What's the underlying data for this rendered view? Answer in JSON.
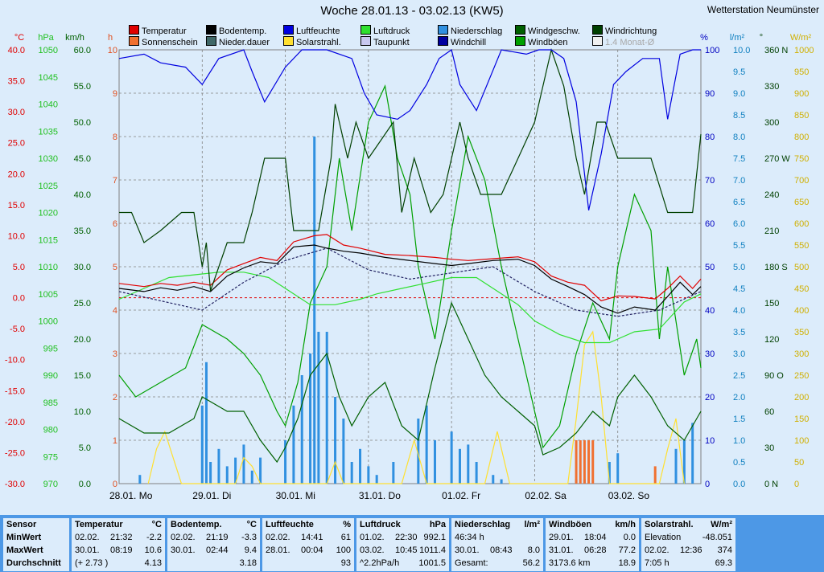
{
  "title": "Woche 28.01.13 - 03.02.13 (KW5)",
  "station": "Wetterstation Neumünster",
  "legend": [
    {
      "label": "Temperatur",
      "color": "#e00000"
    },
    {
      "label": "Sonnenschein",
      "color": "#f07030"
    },
    {
      "label": "Bodentemp.",
      "color": "#000000"
    },
    {
      "label": "Nieder.dauer",
      "color": "#406868"
    },
    {
      "label": "Luftfeuchte",
      "color": "#0000e0"
    },
    {
      "label": "Solarstrahl.",
      "color": "#ffe030"
    },
    {
      "label": "Luftdruck",
      "color": "#30e030"
    },
    {
      "label": "Taupunkt",
      "color": "#c8c8f0"
    },
    {
      "label": "Niederschlag",
      "color": "#3090e0"
    },
    {
      "label": "Windchill",
      "color": "#0000a0"
    },
    {
      "label": "Windgeschw.",
      "color": "#006000"
    },
    {
      "label": "Windböen",
      "color": "#00a000"
    },
    {
      "label": "Windrichtung",
      "color": "#004000"
    },
    {
      "label": "1.4 Monat-Ø",
      "color": "#f0f0f0"
    }
  ],
  "axes": {
    "headers": [
      "°C",
      "hPa",
      "km/h",
      "h",
      "%",
      "l/m²",
      "°",
      "W/m²"
    ],
    "celsius": [
      "40.0",
      "35.0",
      "30.0",
      "25.0",
      "20.0",
      "15.0",
      "10.0",
      "5.0",
      "0.0",
      "-5.0",
      "-10.0",
      "-15.0",
      "-20.0",
      "-25.0",
      "-30.0"
    ],
    "hpa": [
      "1050",
      "1045",
      "1040",
      "1035",
      "1030",
      "1025",
      "1020",
      "1015",
      "1010",
      "1005",
      "1000",
      "995",
      "990",
      "985",
      "980",
      "975",
      "970"
    ],
    "kmh": [
      "60.0",
      "55.0",
      "50.0",
      "45.0",
      "40.0",
      "35.0",
      "30.0",
      "25.0",
      "20.0",
      "15.0",
      "10.0",
      "5.0",
      "0.0"
    ],
    "hours": [
      "10",
      "9",
      "8",
      "7",
      "6",
      "5",
      "4",
      "3",
      "2",
      "1",
      "0"
    ],
    "percent": [
      "100",
      "90",
      "80",
      "70",
      "60",
      "50",
      "40",
      "30",
      "20",
      "10",
      "0"
    ],
    "rain": [
      "10.0",
      "9.5",
      "9.0",
      "8.5",
      "8.0",
      "7.5",
      "7.0",
      "6.5",
      "6.0",
      "5.5",
      "5.0",
      "4.5",
      "4.0",
      "3.5",
      "3.0",
      "2.5",
      "2.0",
      "1.5",
      "1.0",
      "0.5",
      "0.0"
    ],
    "degrees": [
      "360 N",
      "330",
      "300",
      "270 W",
      "240",
      "210",
      "180 S",
      "150",
      "120",
      "90 O",
      "60",
      "30",
      "0 N"
    ],
    "wm2": [
      "1000",
      "950",
      "900",
      "850",
      "800",
      "750",
      "700",
      "650",
      "600",
      "550",
      "500",
      "450",
      "400",
      "350",
      "300",
      "250",
      "200",
      "150",
      "100",
      "50",
      "0"
    ],
    "days": [
      "28.01. Mo",
      "29.01. Di",
      "30.01. Mi",
      "31.01. Do",
      "01.02. Fr",
      "02.02. Sa",
      "03.02. So"
    ]
  },
  "colors": {
    "plot_bg": "#dcecfb",
    "grid": "#808080",
    "zero_line": "#e00000"
  },
  "chart_data": {
    "type": "line",
    "title": "Woche 28.01.13 - 03.02.13 (KW5)",
    "x_label": "",
    "x_range": [
      0,
      7
    ],
    "x_ticks": [
      "28.01. Mo",
      "29.01. Di",
      "30.01. Mi",
      "31.01. Do",
      "01.02. Fr",
      "02.02. Sa",
      "03.02. So"
    ],
    "y_ranges": {
      "°C": [
        -30,
        40
      ],
      "hPa": [
        970,
        1050
      ],
      "km/h": [
        0,
        60
      ],
      "h": [
        0,
        10
      ],
      "%": [
        0,
        100
      ],
      "l/m²": [
        0,
        10
      ],
      "°": [
        0,
        360
      ],
      "W/m²": [
        0,
        1000
      ]
    },
    "grid": true,
    "series": [
      {
        "name": "Temperatur",
        "unit": "°C",
        "x": [
          0,
          0.3,
          0.5,
          0.7,
          0.9,
          1.1,
          1.3,
          1.5,
          1.7,
          1.9,
          2.1,
          2.35,
          2.5,
          2.7,
          2.9,
          3.2,
          3.5,
          3.8,
          4.0,
          4.2,
          4.5,
          4.8,
          5.0,
          5.2,
          5.4,
          5.6,
          5.8,
          6.0,
          6.2,
          6.45,
          6.6,
          6.75,
          6.9,
          7.0
        ],
        "y": [
          2.3,
          1.8,
          2.3,
          2.0,
          2.5,
          2.0,
          4.5,
          5.5,
          6.5,
          6.0,
          9.0,
          10.0,
          10.2,
          8.5,
          8.0,
          7.0,
          6.8,
          6.5,
          6.2,
          6.0,
          6.3,
          6.6,
          5.8,
          3.5,
          2.5,
          2.0,
          -0.5,
          0.3,
          0.2,
          -0.2,
          1.5,
          3.5,
          1.5,
          3.0
        ]
      },
      {
        "name": "Bodentemp.",
        "unit": "°C",
        "x": [
          0,
          0.3,
          0.5,
          0.7,
          0.9,
          1.1,
          1.3,
          1.5,
          1.7,
          1.9,
          2.1,
          2.35,
          2.5,
          2.7,
          2.9,
          3.2,
          3.5,
          3.8,
          4.0,
          4.2,
          4.5,
          4.8,
          5.0,
          5.2,
          5.4,
          5.6,
          5.8,
          6.0,
          6.2,
          6.45,
          6.6,
          6.75,
          6.9,
          7.0
        ],
        "y": [
          1.5,
          1.0,
          1.6,
          1.2,
          1.8,
          1.0,
          3.5,
          4.8,
          5.8,
          5.5,
          8.2,
          8.5,
          8.0,
          7.5,
          7.2,
          6.5,
          6.0,
          5.5,
          5.2,
          5.5,
          6.0,
          6.2,
          5.2,
          3.0,
          1.8,
          0.5,
          -1.5,
          -2.5,
          -1.5,
          -2.0,
          0.2,
          2.5,
          0.5,
          1.8
        ]
      },
      {
        "name": "Taupunkt",
        "unit": "°C",
        "x": [
          0,
          0.5,
          1.0,
          1.5,
          2.0,
          2.5,
          3.0,
          3.5,
          4.0,
          4.5,
          5.0,
          5.5,
          6.0,
          6.5,
          7.0
        ],
        "y": [
          1.0,
          -0.5,
          -2.0,
          2.5,
          6.0,
          8.0,
          4.5,
          3.0,
          4.0,
          5.0,
          1.0,
          -2.0,
          -3.0,
          -2.0,
          1.0
        ]
      },
      {
        "name": "Luftfeuchte",
        "unit": "%",
        "x": [
          0,
          0.3,
          0.5,
          0.8,
          1.0,
          1.2,
          1.5,
          1.6,
          1.75,
          2.0,
          2.2,
          2.5,
          2.8,
          2.95,
          3.1,
          3.35,
          3.5,
          3.7,
          3.85,
          4.0,
          4.1,
          4.3,
          4.6,
          4.9,
          5.05,
          5.2,
          5.35,
          5.5,
          5.65,
          5.8,
          5.95,
          6.1,
          6.3,
          6.5,
          6.6,
          6.75,
          6.9,
          7.0
        ],
        "y": [
          98,
          99,
          97,
          96,
          92,
          98,
          100,
          95,
          88,
          96,
          100,
          100,
          98,
          90,
          85,
          84,
          86,
          92,
          98,
          100,
          92,
          86,
          100,
          99,
          100,
          100,
          98,
          88,
          63,
          76,
          92,
          95,
          98,
          98,
          84,
          99,
          100,
          100
        ]
      },
      {
        "name": "Luftdruck",
        "unit": "hPa",
        "x": [
          0,
          0.3,
          0.6,
          0.9,
          1.2,
          1.5,
          1.8,
          2.0,
          2.3,
          2.6,
          2.9,
          3.1,
          3.4,
          3.7,
          4.0,
          4.3,
          4.5,
          4.8,
          5.0,
          5.3,
          5.6,
          5.9,
          6.2,
          6.5,
          6.8,
          7.0
        ],
        "y": [
          1004,
          1006,
          1008,
          1008.5,
          1009,
          1009,
          1008,
          1006,
          1003,
          1003,
          1004,
          1005,
          1006,
          1007,
          1008,
          1008,
          1006,
          1003,
          1000,
          997.5,
          996,
          996,
          998,
          998.5,
          1003.5,
          1005
        ]
      },
      {
        "name": "Windgeschw.",
        "unit": "km/h",
        "x": [
          0,
          0.3,
          0.6,
          0.9,
          1.0,
          1.3,
          1.5,
          1.7,
          1.9,
          2.0,
          2.15,
          2.3,
          2.5,
          2.65,
          2.8,
          3.0,
          3.2,
          3.4,
          3.6,
          3.8,
          4.0,
          4.2,
          4.4,
          4.6,
          4.8,
          5.0,
          5.1,
          5.3,
          5.5,
          5.7,
          5.9,
          6.0,
          6.2,
          6.4,
          6.6,
          6.8,
          6.9,
          7.0
        ],
        "y": [
          9,
          7,
          7,
          9,
          12,
          10,
          10,
          6,
          3,
          5,
          9,
          15,
          18,
          12,
          8,
          12,
          14,
          8,
          6,
          16,
          25,
          20,
          15,
          12,
          10,
          8,
          4,
          5,
          7,
          10,
          8,
          12,
          15,
          12,
          8,
          6,
          8,
          10
        ]
      },
      {
        "name": "Windböen",
        "unit": "km/h",
        "x": [
          0,
          0.2,
          0.5,
          0.8,
          1.0,
          1.3,
          1.5,
          1.7,
          1.9,
          2.0,
          2.15,
          2.3,
          2.5,
          2.65,
          2.8,
          3.0,
          3.2,
          3.35,
          3.5,
          3.6,
          3.8,
          4.0,
          4.2,
          4.4,
          4.6,
          4.8,
          5.0,
          5.1,
          5.3,
          5.5,
          5.7,
          5.9,
          6.0,
          6.2,
          6.4,
          6.5,
          6.6,
          6.8,
          6.95,
          7.0
        ],
        "y": [
          15,
          12,
          14,
          16,
          22,
          20,
          18,
          15,
          10,
          8,
          14,
          25,
          30,
          45,
          35,
          50,
          55,
          45,
          40,
          30,
          20,
          35,
          48,
          42,
          30,
          20,
          10,
          5,
          8,
          18,
          25,
          20,
          30,
          40,
          35,
          20,
          30,
          15,
          20,
          16
        ]
      },
      {
        "name": "Windrichtung",
        "unit": "°",
        "x": [
          0,
          0.15,
          0.3,
          0.5,
          0.75,
          0.9,
          1.0,
          1.05,
          1.1,
          1.3,
          1.5,
          1.6,
          1.75,
          2.0,
          2.1,
          2.4,
          2.55,
          2.6,
          2.75,
          2.85,
          3.0,
          3.15,
          3.3,
          3.4,
          3.55,
          3.75,
          3.9,
          4.1,
          4.2,
          4.35,
          4.6,
          4.8,
          5.0,
          5.2,
          5.35,
          5.5,
          5.6,
          5.75,
          5.85,
          6.0,
          6.2,
          6.4,
          6.6,
          6.9,
          7.0
        ],
        "y": [
          225,
          225,
          200,
          210,
          225,
          225,
          180,
          200,
          160,
          200,
          200,
          225,
          270,
          270,
          210,
          210,
          270,
          315,
          270,
          300,
          270,
          285,
          300,
          225,
          270,
          225,
          240,
          300,
          270,
          240,
          240,
          270,
          300,
          360,
          330,
          270,
          240,
          300,
          300,
          270,
          270,
          270,
          225,
          225,
          290
        ]
      },
      {
        "name": "Niederschlag",
        "unit": "l/m²",
        "x": [
          0.25,
          1.0,
          1.05,
          1.1,
          1.2,
          1.3,
          1.4,
          1.5,
          1.6,
          1.7,
          2.0,
          2.1,
          2.2,
          2.3,
          2.35,
          2.4,
          2.5,
          2.6,
          2.7,
          2.8,
          2.9,
          3.0,
          3.1,
          3.3,
          3.6,
          3.7,
          3.8,
          4.0,
          4.1,
          4.2,
          4.3,
          4.5,
          4.6,
          5.5,
          5.6,
          5.9,
          6.0,
          6.7,
          6.8,
          6.9
        ],
        "y": [
          0.2,
          1.8,
          2.8,
          0.5,
          0.8,
          0.4,
          0.6,
          0.9,
          0.3,
          0.6,
          1.0,
          1.8,
          2.5,
          3.0,
          8.0,
          3.5,
          3.5,
          2.0,
          1.5,
          0.5,
          0.8,
          0.4,
          0.2,
          0.5,
          1.5,
          1.8,
          1.0,
          1.2,
          0.8,
          0.9,
          0.5,
          0.2,
          0.1,
          0.1,
          0.1,
          0.5,
          0.7,
          0.8,
          1.0,
          1.4
        ]
      },
      {
        "name": "Solarstrahl.",
        "unit": "W/m²",
        "x": [
          0.35,
          0.45,
          0.55,
          0.65,
          0.75,
          1.4,
          1.5,
          1.6,
          1.7,
          2.0,
          2.5,
          2.6,
          2.7,
          3.4,
          3.55,
          3.7,
          4.4,
          4.55,
          4.7,
          5.4,
          5.5,
          5.6,
          5.7,
          5.8,
          5.9,
          6.5,
          6.6,
          6.7,
          6.8
        ],
        "y": [
          0,
          80,
          120,
          60,
          0,
          0,
          60,
          40,
          0,
          0,
          0,
          50,
          0,
          0,
          100,
          0,
          0,
          120,
          0,
          0,
          150,
          320,
          350,
          200,
          0,
          0,
          80,
          150,
          0
        ]
      },
      {
        "name": "Sonnenschein",
        "unit": "h",
        "x": [
          5.5,
          5.55,
          5.6,
          5.65,
          5.7,
          6.45
        ],
        "y": [
          1.0,
          1.0,
          1.0,
          1.0,
          1.0,
          0.4
        ]
      }
    ]
  },
  "stats": {
    "blocks": [
      {
        "header": "Sensor",
        "unit": "",
        "rows": [
          {
            "a": "MinWert",
            "b": "",
            "c": ""
          },
          {
            "a": "MaxWert",
            "b": "",
            "c": ""
          },
          {
            "a": "Durchschnitt",
            "b": "",
            "c": ""
          }
        ]
      },
      {
        "header": "Temperatur",
        "unit": "°C",
        "rows": [
          {
            "a": "02.02.",
            "b": "21:32",
            "c": "-2.2"
          },
          {
            "a": "30.01.",
            "b": "08:19",
            "c": "10.6"
          },
          {
            "a": "(+ 2.73 )",
            "b": "",
            "c": "4.13"
          }
        ]
      },
      {
        "header": "Bodentemp.",
        "unit": "°C",
        "rows": [
          {
            "a": "02.02.",
            "b": "21:19",
            "c": "-3.3"
          },
          {
            "a": "30.01.",
            "b": "02:44",
            "c": "9.4"
          },
          {
            "a": "",
            "b": "",
            "c": "3.18"
          }
        ]
      },
      {
        "header": "Luftfeuchte",
        "unit": "%",
        "rows": [
          {
            "a": "02.02.",
            "b": "14:41",
            "c": "61"
          },
          {
            "a": "28.01.",
            "b": "00:04",
            "c": "100"
          },
          {
            "a": "",
            "b": "",
            "c": "93"
          }
        ]
      },
      {
        "header": "Luftdruck",
        "unit": "hPa",
        "rows": [
          {
            "a": "01.02.",
            "b": "22:30",
            "c": "992.1"
          },
          {
            "a": "03.02.",
            "b": "10:45",
            "c": "1011.4"
          },
          {
            "a": "^2.2hPa/h",
            "b": "",
            "c": "1001.5"
          }
        ]
      },
      {
        "header": "Niederschlag",
        "unit": "l/m²",
        "rows": [
          {
            "a": "46:34 h",
            "b": "",
            "c": ""
          },
          {
            "a": "30.01.",
            "b": "08:43",
            "c": "8.0"
          },
          {
            "a": "Gesamt:",
            "b": "",
            "c": "56.2"
          }
        ]
      },
      {
        "header": "Windböen",
        "unit": "km/h",
        "rows": [
          {
            "a": "29.01.",
            "b": "18:04",
            "c": "0.0"
          },
          {
            "a": "31.01.",
            "b": "06:28",
            "c": "77.2"
          },
          {
            "a": "3173.6 km",
            "b": "",
            "c": "18.9"
          }
        ]
      },
      {
        "header": "Solarstrahl.",
        "unit": "W/m²",
        "rows": [
          {
            "a": "Elevation",
            "b": "",
            "c": "-48.051"
          },
          {
            "a": "02.02.",
            "b": "12:36",
            "c": "374"
          },
          {
            "a": "7:05 h",
            "b": "",
            "c": "69.3"
          }
        ]
      }
    ]
  }
}
